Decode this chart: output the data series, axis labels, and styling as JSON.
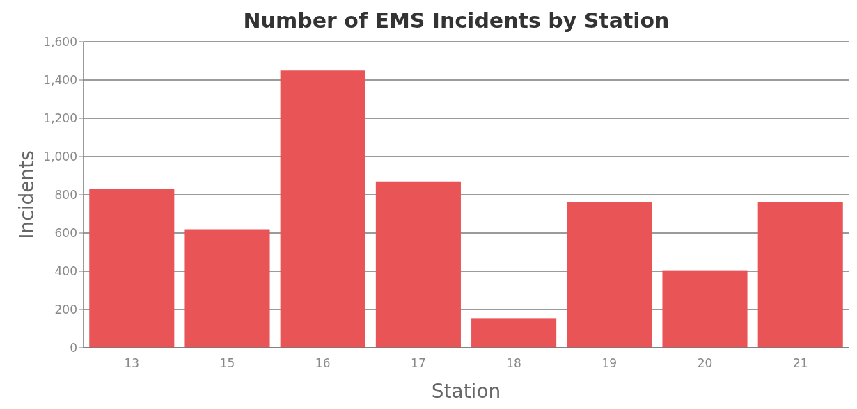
{
  "chart_data": {
    "type": "bar",
    "title": "Number of EMS Incidents by Station",
    "xlabel": "Station",
    "ylabel": "Incidents",
    "categories": [
      "13",
      "15",
      "16",
      "17",
      "18",
      "19",
      "20",
      "21"
    ],
    "values": [
      830,
      620,
      1450,
      870,
      155,
      760,
      405,
      760
    ],
    "color": "#e95557",
    "ylim": [
      0,
      1600
    ],
    "yticks": [
      {
        "value": 0,
        "label": "0"
      },
      {
        "value": 200,
        "label": "200"
      },
      {
        "value": 400,
        "label": "400"
      },
      {
        "value": 600,
        "label": "600"
      },
      {
        "value": 800,
        "label": "800"
      },
      {
        "value": 1000,
        "label": "1,000"
      },
      {
        "value": 1200,
        "label": "1,200"
      },
      {
        "value": 1400,
        "label": "1,400"
      },
      {
        "value": 1600,
        "label": "1,600"
      }
    ],
    "grid": "y"
  }
}
